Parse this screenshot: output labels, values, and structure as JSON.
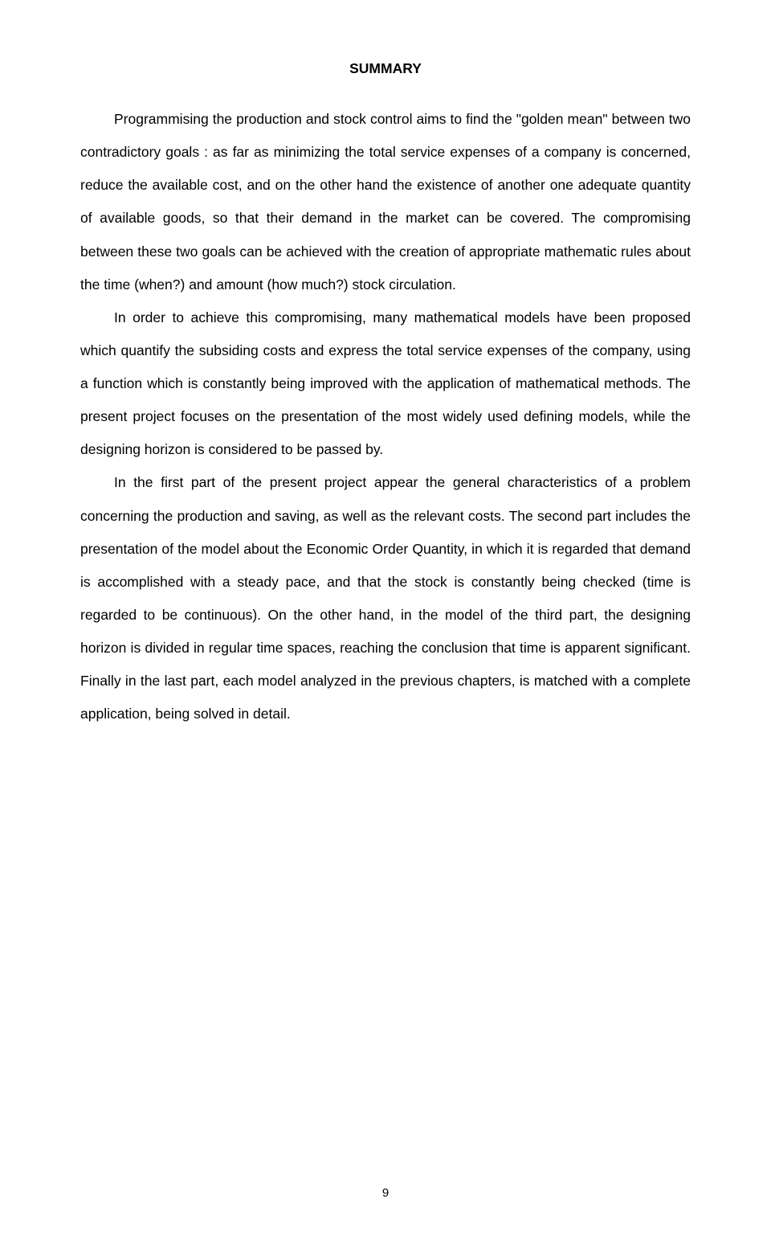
{
  "title": "SUMMARY",
  "paragraphs": {
    "p1": "Programmising the production and stock control aims to find the \"golden mean\" between two contradictory goals : as far as minimizing the total service expenses of a company is concerned, reduce the available cost, and on the other hand the existence of another one adequate quantity of available goods, so that their demand in the market can be covered. The compromising between these two goals can be achieved with the creation of appropriate mathematic rules about the time (when?) and amount (how much?) stock circulation.",
    "p2": "In order to achieve this compromising, many mathematical models have been proposed which quantify the subsiding costs and express the total service expenses of the company, using a function which is constantly being improved with the application of mathematical methods. The present project focuses on the presentation of the most widely used defining models, while the designing horizon is considered to be passed by.",
    "p3": "In the first part of the present project appear the general characteristics of a problem concerning the production and saving, as well as the relevant costs. The second part includes the presentation of the model about the Economic Order Quantity, in which it is regarded that demand is accomplished with a steady pace, and that the stock is constantly being checked (time is regarded to be continuous). On the other hand, in the model of the third part, the designing horizon is divided in regular time spaces, reaching the conclusion that time is apparent significant. Finally in the last part, each model analyzed in the previous chapters, is matched with a complete application, being solved in detail."
  },
  "pageNumber": "9",
  "styling": {
    "background_color": "#ffffff",
    "text_color": "#000000",
    "font_family": "Arial, Helvetica, sans-serif",
    "title_fontsize": 17.5,
    "body_fontsize": 17.5,
    "line_height": 2.35,
    "text_indent": 42,
    "page_number_fontsize": 15
  }
}
